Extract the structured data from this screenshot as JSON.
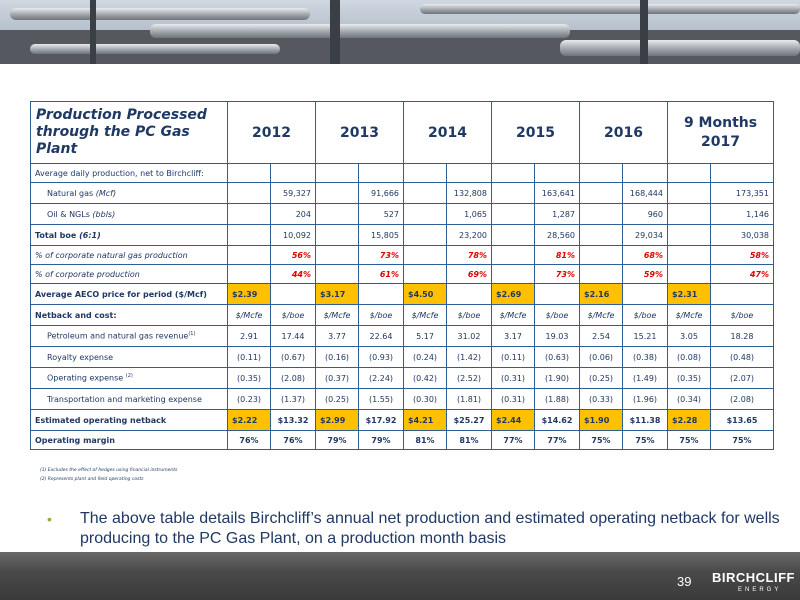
{
  "table": {
    "title": "Production Processed through the PC Gas Plant",
    "years": [
      "2012",
      "2013",
      "2014",
      "2015",
      "2016",
      "9 Months 2017"
    ],
    "rows": {
      "avg_daily": {
        "label": "Average daily production, net to Birchcliff:"
      },
      "natgas": {
        "label": "Natural gas",
        "unit": "(Mcf)",
        "values": [
          "59,327",
          "91,666",
          "132,808",
          "163,641",
          "168,444",
          "173,351"
        ]
      },
      "oil": {
        "label": "Oil & NGLs",
        "unit": "(bbls)",
        "values": [
          "204",
          "527",
          "1,065",
          "1,287",
          "960",
          "1,146"
        ]
      },
      "total": {
        "label": "Total boe",
        "unit": "(6:1)",
        "values": [
          "10,092",
          "15,805",
          "23,200",
          "28,560",
          "29,034",
          "30,038"
        ]
      },
      "pct_natgas": {
        "label": "% of corporate natural gas production",
        "values": [
          "56%",
          "73%",
          "78%",
          "81%",
          "68%",
          "58%"
        ]
      },
      "pct_prod": {
        "label": "% of corporate production",
        "values": [
          "44%",
          "61%",
          "69%",
          "73%",
          "59%",
          "47%"
        ]
      },
      "aeco": {
        "label": "Average AECO price for period ($/Mcf)",
        "values": [
          "$2.39",
          "$3.17",
          "$4.50",
          "$2.69",
          "$2.16",
          "$2.31"
        ]
      },
      "netback_hdr": {
        "label": "Netback and cost:",
        "units": [
          "$/Mcfe",
          "$/boe",
          "$/Mcfe",
          "$/boe",
          "$/Mcfe",
          "$/boe",
          "$/Mcfe",
          "$/boe",
          "$/Mcfe",
          "$/boe",
          "$/Mcfe",
          "$/boe"
        ]
      },
      "revenue": {
        "label": "Petroleum and natural gas revenue",
        "sup": "(1)",
        "values": [
          "2.91",
          "17.44",
          "3.77",
          "22.64",
          "5.17",
          "31.02",
          "3.17",
          "19.03",
          "2.54",
          "15.21",
          "3.05",
          "18.28"
        ]
      },
      "royalty": {
        "label": "Royalty expense",
        "values": [
          "(0.11)",
          "(0.67)",
          "(0.16)",
          "(0.93)",
          "(0.24)",
          "(1.42)",
          "(0.11)",
          "(0.63)",
          "(0.06)",
          "(0.38)",
          "(0.08)",
          "(0.48)"
        ]
      },
      "operating": {
        "label": "Operating expense",
        "sup": "(2)",
        "values": [
          "(0.35)",
          "(2.08)",
          "(0.37)",
          "(2.24)",
          "(0.42)",
          "(2.52)",
          "(0.31)",
          "(1.90)",
          "(0.25)",
          "(1.49)",
          "(0.35)",
          "(2.07)"
        ]
      },
      "transport": {
        "label": "Transportation and marketing expense",
        "values": [
          "(0.23)",
          "(1.37)",
          "(0.25)",
          "(1.55)",
          "(0.30)",
          "(1.81)",
          "(0.31)",
          "(1.88)",
          "(0.33)",
          "(1.96)",
          "(0.34)",
          "(2.08)"
        ]
      },
      "est_netback": {
        "label": "Estimated operating netback",
        "values": [
          "$2.22",
          "$13.32",
          "$2.99",
          "$17.92",
          "$4.21",
          "$25.27",
          "$2.44",
          "$14.62",
          "$1.90",
          "$11.38",
          "$2.28",
          "$13.65"
        ]
      },
      "margin": {
        "label": "Operating margin",
        "values": [
          "76%",
          "76%",
          "79%",
          "79%",
          "81%",
          "81%",
          "77%",
          "77%",
          "75%",
          "75%",
          "75%",
          "75%"
        ]
      }
    }
  },
  "footnotes": [
    "(1) Excludes the effect of hedges using financial instruments",
    "(2) Represents plant and field operating costs"
  ],
  "bullet": "The above table details Birchcliff’s annual net production and estimated operating netback for wells producing to the PC Gas Plant, on a production month basis",
  "footer": {
    "page_number": "39",
    "logo_name": "BIRCHCLIFF",
    "logo_sub": "ENERGY"
  },
  "colors": {
    "accent_red": "#e00000",
    "highlight_gold": "#ffc000",
    "table_blue": "#1f3864",
    "bullet_green": "#8db33a"
  }
}
